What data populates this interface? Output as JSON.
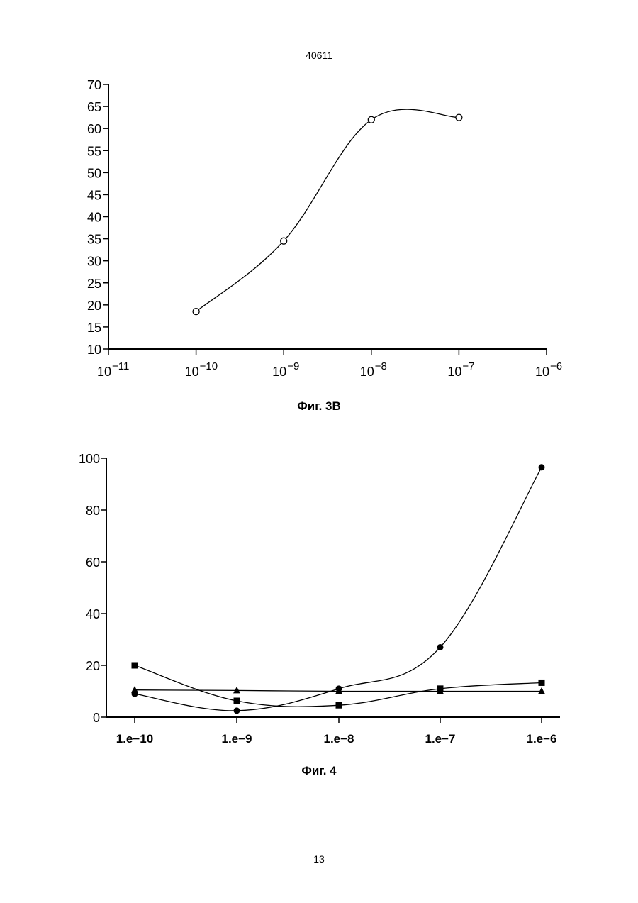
{
  "header": {
    "doc_number": "40611"
  },
  "footer": {
    "page_number": "13"
  },
  "figures": [
    {
      "caption": "Фиг. 3В"
    },
    {
      "caption": "Фиг. 4"
    }
  ],
  "chart_data": [
    {
      "type": "line",
      "title": "",
      "xlabel": "",
      "ylabel": "",
      "x_scale": "log",
      "xlim": [
        1e-11,
        1e-06
      ],
      "ylim": [
        10,
        70
      ],
      "x_tick_base": "10",
      "x_tick_exponents": [
        "−11",
        "−10",
        "−9",
        "−8",
        "−7",
        "−6"
      ],
      "y_ticks": [
        "10",
        "15",
        "20",
        "25",
        "30",
        "35",
        "40",
        "45",
        "50",
        "55",
        "60",
        "65",
        "70"
      ],
      "marker": "open-circle",
      "series": [
        {
          "x": [
            1e-10,
            1e-09,
            1e-08,
            1e-07
          ],
          "y": [
            18.5,
            34.5,
            62,
            62.5
          ]
        }
      ]
    },
    {
      "type": "line",
      "title": "",
      "xlabel": "",
      "ylabel": "",
      "x_scale": "log",
      "ylim": [
        0,
        100
      ],
      "categories": [
        "1.e−10",
        "1.e−9",
        "1.e−8",
        "1.e−7",
        "1.e−6"
      ],
      "x": [
        1e-10,
        1e-09,
        1e-08,
        1e-07,
        1e-06
      ],
      "y_ticks": [
        "0",
        "20",
        "40",
        "60",
        "80",
        "100"
      ],
      "series": [
        {
          "marker": "filled-circle",
          "values": [
            9,
            2.5,
            11,
            27,
            96.5
          ]
        },
        {
          "marker": "filled-square",
          "values": [
            20,
            6.3,
            4.6,
            11,
            13.3
          ]
        },
        {
          "marker": "filled-triangle",
          "values": [
            10.5,
            10.3,
            10,
            10,
            10
          ]
        }
      ]
    }
  ]
}
